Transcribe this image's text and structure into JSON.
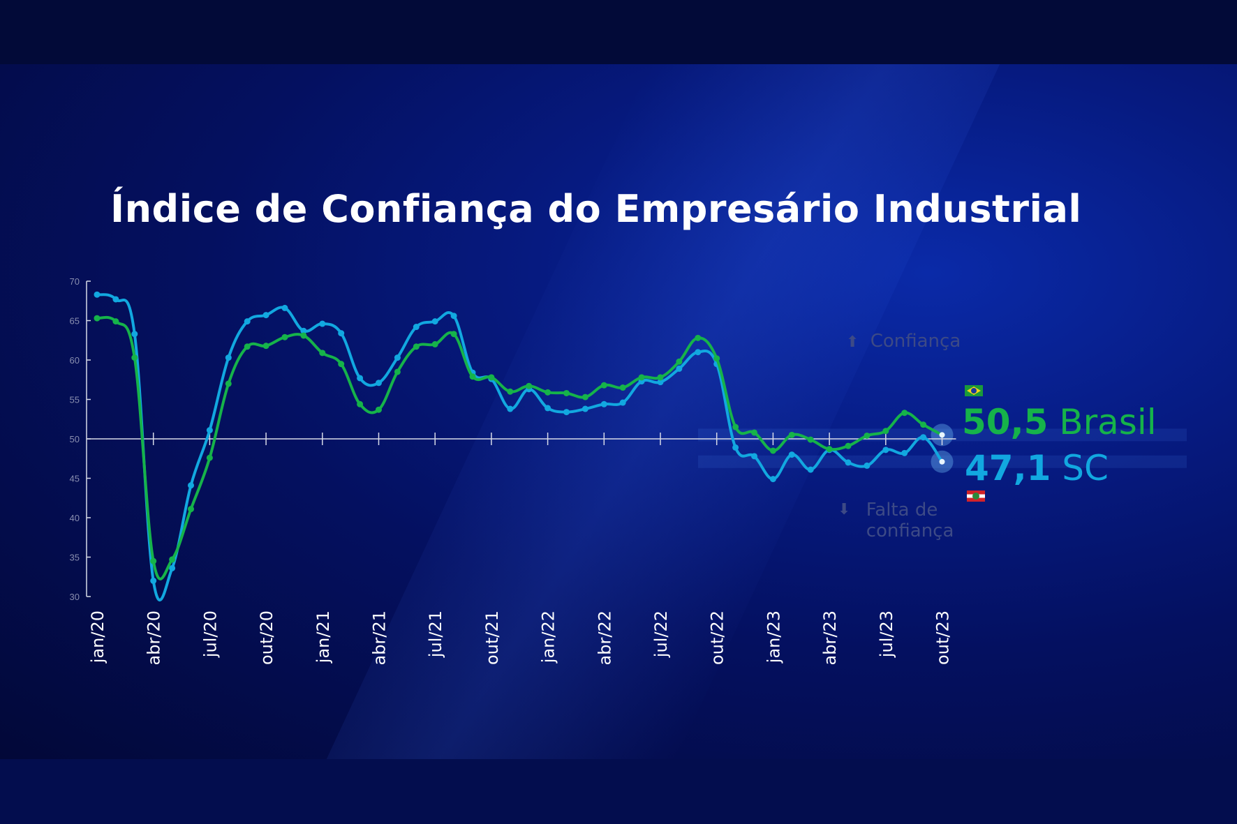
{
  "title": "Índice de Confiança do Empresário Industrial",
  "colors": {
    "brasil": "#16b34a",
    "sc": "#12a8e0",
    "axis": "#d8dbe8",
    "hint": "#3d4a86"
  },
  "annotations": {
    "up": "Confiança",
    "down_1": "Falta de",
    "down_2": "confiança",
    "up_icon": "arrow-up-icon",
    "down_icon": "arrow-down-icon"
  },
  "callouts": {
    "brasil_value": "50,5",
    "brasil_name": "Brasil",
    "sc_value": "47,1",
    "sc_name": "SC"
  },
  "chart_data": {
    "type": "line",
    "title": "Índice de Confiança do Empresário Industrial",
    "ylim": [
      30,
      70
    ],
    "yticks": [
      30,
      35,
      40,
      45,
      50,
      55,
      60,
      65,
      70
    ],
    "reference_line": 50,
    "xtick_labels": [
      "jan/20",
      "abr/20",
      "jul/20",
      "out/20",
      "jan/21",
      "abr/21",
      "jul/21",
      "out/21",
      "jan/22",
      "abr/22",
      "jul/22",
      "out/22",
      "jan/23",
      "abr/23",
      "jul/23",
      "out/23"
    ],
    "x_frequency": "monthly",
    "series": [
      {
        "name": "Brasil",
        "color": "#16b34a",
        "values": [
          65.3,
          64.9,
          60.3,
          34.5,
          34.7,
          41.1,
          47.6,
          57.0,
          61.7,
          61.8,
          62.9,
          63.1,
          60.9,
          59.5,
          54.4,
          53.7,
          58.5,
          61.7,
          62.0,
          63.3,
          57.9,
          57.8,
          56.0,
          56.7,
          55.9,
          55.8,
          55.3,
          56.8,
          56.5,
          57.8,
          57.8,
          59.8,
          62.8,
          60.2,
          51.5,
          50.8,
          48.5,
          50.5,
          49.9,
          48.7,
          49.1,
          50.4,
          51.0,
          53.3,
          51.8,
          50.5
        ]
      },
      {
        "name": "SC",
        "color": "#12a8e0",
        "values": [
          68.3,
          67.7,
          63.3,
          32.0,
          33.6,
          44.1,
          51.1,
          60.3,
          64.9,
          65.7,
          66.6,
          63.7,
          64.6,
          63.4,
          57.7,
          57.1,
          60.3,
          64.2,
          64.9,
          65.6,
          58.4,
          57.6,
          53.8,
          56.3,
          53.9,
          53.4,
          53.8,
          54.4,
          54.6,
          57.3,
          57.2,
          58.9,
          61.0,
          59.5,
          48.9,
          47.8,
          44.9,
          48.0,
          46.1,
          48.6,
          47.0,
          46.6,
          48.6,
          48.2,
          50.2,
          47.1
        ]
      }
    ],
    "grid": false,
    "legend": "none"
  }
}
